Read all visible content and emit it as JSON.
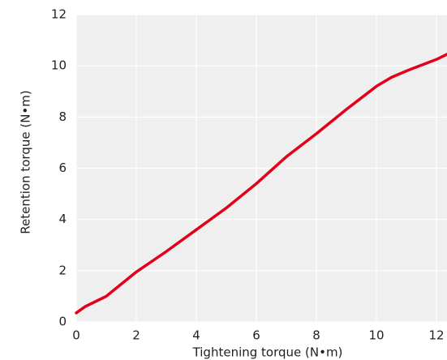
{
  "chart_data": {
    "type": "line",
    "x_label": "Tightening torque (N•m)",
    "y_label": "Retention torque (N•m)",
    "x": [
      0,
      0.3,
      1,
      2,
      3,
      4,
      5,
      6,
      7,
      8,
      9,
      10,
      10.5,
      11,
      12,
      12.35
    ],
    "series": [
      {
        "color": "#e2001a",
        "values": [
          0.35,
          0.6,
          1.0,
          1.95,
          2.75,
          3.6,
          4.45,
          5.4,
          6.45,
          7.35,
          8.3,
          9.2,
          9.55,
          9.8,
          10.25,
          10.45
        ]
      }
    ],
    "xlim": [
      0,
      12.35
    ],
    "xticks": [
      0,
      2,
      4,
      6,
      8,
      10,
      12
    ],
    "ylim": [
      0,
      12
    ],
    "yticks": [
      0,
      2,
      4,
      6,
      8,
      10,
      12
    ],
    "grid": true,
    "background": "#efefef"
  }
}
